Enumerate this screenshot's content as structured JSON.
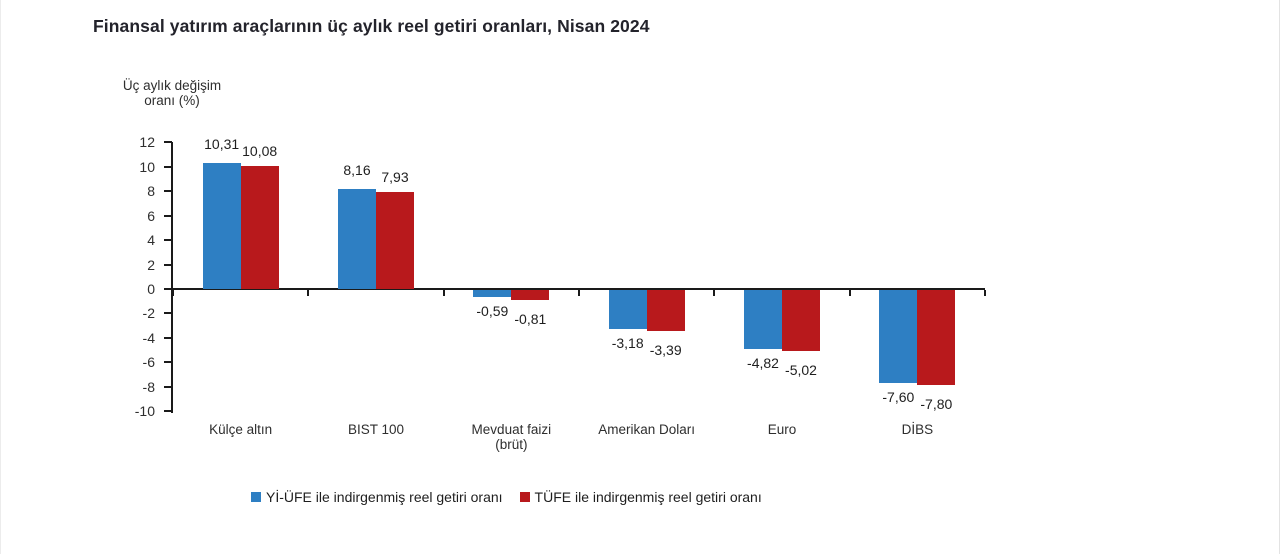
{
  "page": {
    "title": "Finansal yatırım araçlarının üç aylık reel getiri oranları, Nisan 2024"
  },
  "chart_data": {
    "type": "bar",
    "title": "Finansal yatırım araçlarının üç aylık reel getiri oranları, Nisan 2024",
    "ylabel_lines": [
      "Üç aylık değişim",
      "oranı (%)"
    ],
    "xlabel": "",
    "ylim": [
      -10,
      12
    ],
    "yticks": [
      12,
      10,
      8,
      6,
      4,
      2,
      0,
      -2,
      -4,
      -6,
      -8,
      -10
    ],
    "grid": false,
    "legend_position": "bottom",
    "categories": [
      "Külçe altın",
      "BIST 100",
      "Mevduat faizi (brüt)",
      "Amerikan Doları",
      "Euro",
      "DİBS"
    ],
    "category_label_lines": [
      [
        "Külçe altın"
      ],
      [
        "BIST 100"
      ],
      [
        "Mevduat faizi",
        "(brüt)"
      ],
      [
        "Amerikan Doları"
      ],
      [
        "Euro"
      ],
      [
        "DİBS"
      ]
    ],
    "series": [
      {
        "name": "Yİ-ÜFE ile indirgenmiş reel getiri oranı",
        "color": "#2E7FC3",
        "values": [
          10.31,
          8.16,
          -0.59,
          -3.18,
          -4.82,
          -7.6
        ],
        "value_labels": [
          "10,31",
          "8,16",
          "-0,59",
          "-3,18",
          "-4,82",
          "-7,60"
        ]
      },
      {
        "name": "TÜFE ile indirgenmiş reel getiri oranı",
        "color": "#B8191C",
        "values": [
          10.08,
          7.93,
          -0.81,
          -3.39,
          -5.02,
          -7.8
        ],
        "value_labels": [
          "10,08",
          "7,93",
          "-0,81",
          "-3,39",
          "-5,02",
          "-7,80"
        ]
      }
    ]
  }
}
